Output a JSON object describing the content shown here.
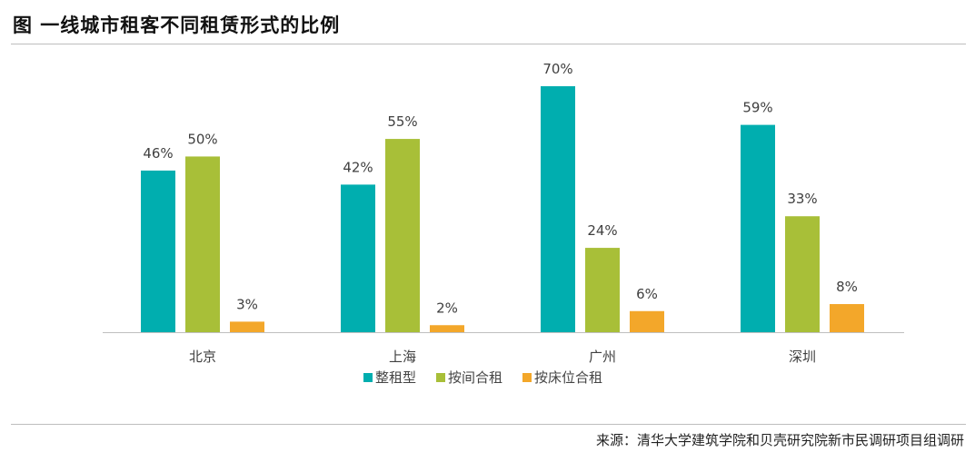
{
  "title": "图  一线城市租客不同租赁形式的比例",
  "source": "来源：清华大学建筑学院和贝壳研究院新市民调研项目组调研",
  "chart_data": {
    "type": "bar",
    "categories": [
      "北京",
      "上海",
      "广州",
      "深圳"
    ],
    "series": [
      {
        "name": "整租型",
        "values": [
          46,
          42,
          70,
          59
        ],
        "color": "#00AEAF"
      },
      {
        "name": "按间合租",
        "values": [
          50,
          55,
          24,
          33
        ],
        "color": "#A8BF38"
      },
      {
        "name": "按床位合租",
        "values": [
          3,
          2,
          6,
          8
        ],
        "color": "#F3A72A"
      }
    ],
    "value_suffix": "%",
    "legend": "bottom",
    "grid": false
  }
}
